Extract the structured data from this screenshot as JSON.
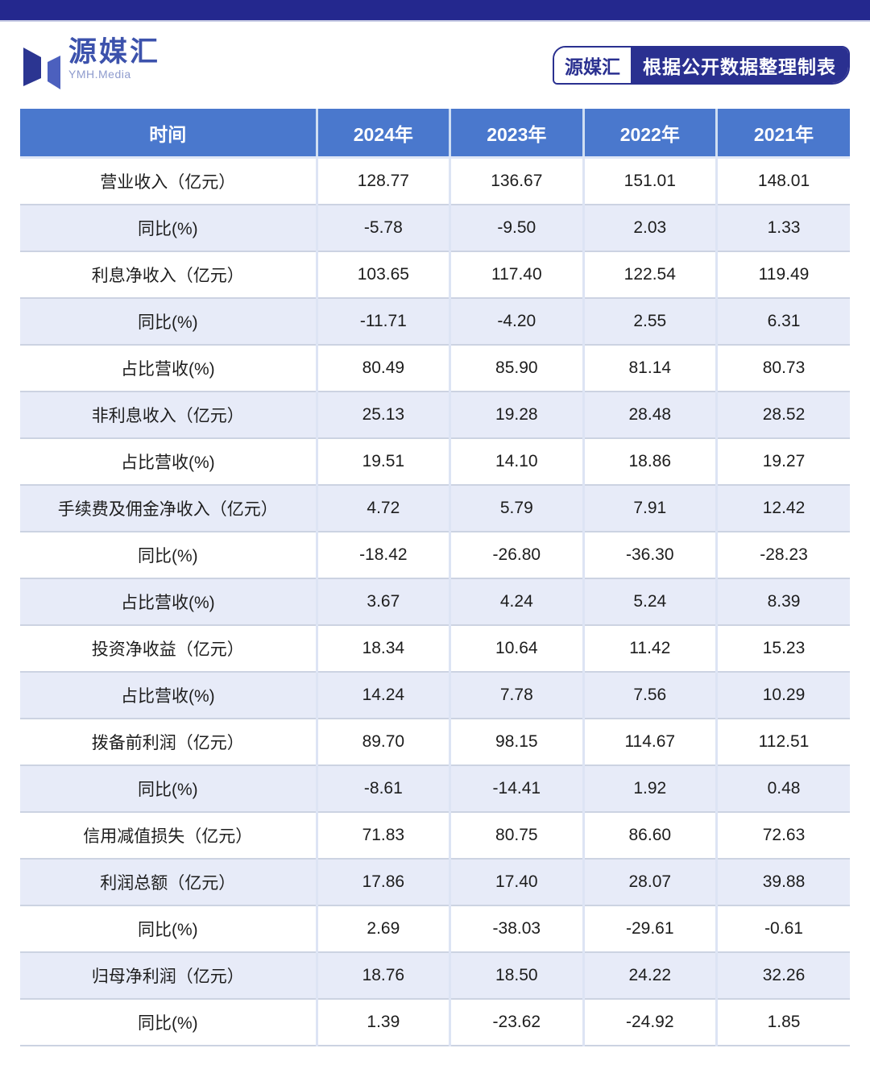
{
  "ui": {
    "logo": {
      "name": "源媒汇",
      "tagline": "YMH.Media"
    },
    "source_badge": {
      "brand": "源媒汇",
      "text": "根据公开数据整理制表"
    },
    "colors": {
      "topbar_navy": "#24288E",
      "table_header_blue": "#4A78CD",
      "row_alt_blue": "#E7EBF8",
      "badge_navy": "#2A3090",
      "logo_dark_blue": "#2B3591",
      "logo_light_blue": "#4C60BE"
    }
  },
  "chart_data": {
    "type": "table",
    "columns": [
      "时间",
      "2024年",
      "2023年",
      "2022年",
      "2021年"
    ],
    "rows": [
      {
        "label": "营业收入（亿元）",
        "values": [
          "128.77",
          "136.67",
          "151.01",
          "148.01"
        ]
      },
      {
        "label": "同比(%)",
        "values": [
          "-5.78",
          "-9.50",
          "2.03",
          "1.33"
        ]
      },
      {
        "label": "利息净收入（亿元）",
        "values": [
          "103.65",
          "117.40",
          "122.54",
          "119.49"
        ]
      },
      {
        "label": "同比(%)",
        "values": [
          "-11.71",
          "-4.20",
          "2.55",
          "6.31"
        ]
      },
      {
        "label": "占比营收(%)",
        "values": [
          "80.49",
          "85.90",
          "81.14",
          "80.73"
        ]
      },
      {
        "label": "非利息收入（亿元）",
        "values": [
          "25.13",
          "19.28",
          "28.48",
          "28.52"
        ]
      },
      {
        "label": "占比营收(%)",
        "values": [
          "19.51",
          "14.10",
          "18.86",
          "19.27"
        ]
      },
      {
        "label": "手续费及佣金净收入（亿元）",
        "values": [
          "4.72",
          "5.79",
          "7.91",
          "12.42"
        ]
      },
      {
        "label": "同比(%)",
        "values": [
          "-18.42",
          "-26.80",
          "-36.30",
          "-28.23"
        ]
      },
      {
        "label": "占比营收(%)",
        "values": [
          "3.67",
          "4.24",
          "5.24",
          "8.39"
        ]
      },
      {
        "label": "投资净收益（亿元）",
        "values": [
          "18.34",
          "10.64",
          "11.42",
          "15.23"
        ]
      },
      {
        "label": "占比营收(%)",
        "values": [
          "14.24",
          "7.78",
          "7.56",
          "10.29"
        ]
      },
      {
        "label": "拨备前利润（亿元）",
        "values": [
          "89.70",
          "98.15",
          "114.67",
          "112.51"
        ]
      },
      {
        "label": "同比(%)",
        "values": [
          "-8.61",
          "-14.41",
          "1.92",
          "0.48"
        ]
      },
      {
        "label": "信用减值损失（亿元）",
        "values": [
          "71.83",
          "80.75",
          "86.60",
          "72.63"
        ]
      },
      {
        "label": "利润总额（亿元）",
        "values": [
          "17.86",
          "17.40",
          "28.07",
          "39.88"
        ]
      },
      {
        "label": "同比(%)",
        "values": [
          "2.69",
          "-38.03",
          "-29.61",
          "-0.61"
        ]
      },
      {
        "label": "归母净利润（亿元）",
        "values": [
          "18.76",
          "18.50",
          "24.22",
          "32.26"
        ]
      },
      {
        "label": "同比(%)",
        "values": [
          "1.39",
          "-23.62",
          "-24.92",
          "1.85"
        ]
      }
    ],
    "source_note": "源媒汇根据公开数据整理制表"
  }
}
